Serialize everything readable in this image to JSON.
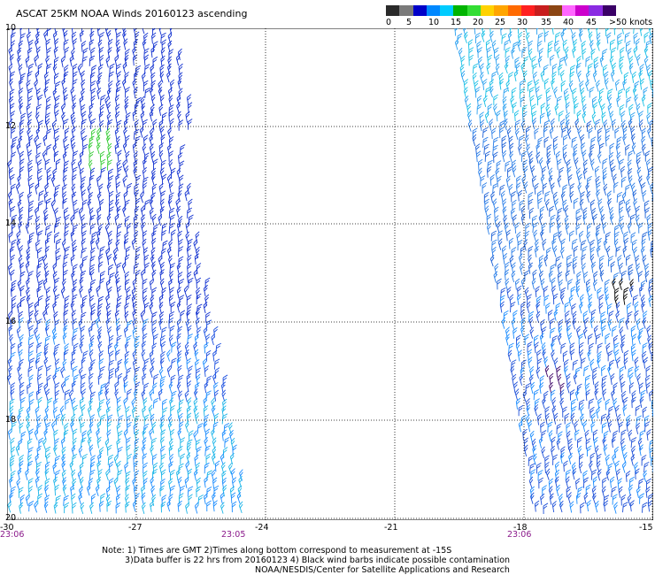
{
  "title": "ASCAT 25KM NOAA Winds 20160123 ascending",
  "colorbar": {
    "colors": [
      "#2a2a2a",
      "#7a7a7a",
      "#0000c8",
      "#0088ff",
      "#00ccff",
      "#00b400",
      "#33dd33",
      "#ffd200",
      "#ffa500",
      "#ff6a00",
      "#ff2020",
      "#c81e1e",
      "#8b4513",
      "#ff66ff",
      "#cc00cc",
      "#8a2be2",
      "#3a0066"
    ],
    "labels": [
      "0",
      "5",
      "10",
      "15",
      "20",
      "25",
      "30",
      "35",
      "40",
      "45",
      ">50 knots"
    ]
  },
  "lat_labels": [
    "10",
    "12",
    "14",
    "16",
    "18",
    "20"
  ],
  "lon_labels": [
    "-30",
    "-27",
    "-24",
    "-21",
    "-18",
    "-15"
  ],
  "time_labels": [
    "23:06",
    "23:05",
    "23:06"
  ],
  "notes": {
    "line1": "Note: 1) Times are GMT 2)Times along bottom correspond to measurement at -15S",
    "line2": "3)Data buffer is 22 hrs from 20160123 4) Black wind barbs indicate possible contamination",
    "line3": "NOAA/NESDIS/Center for Satellite Applications and Research"
  }
}
